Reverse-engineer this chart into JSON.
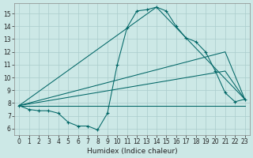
{
  "xlabel": "Humidex (Indice chaleur)",
  "xlim": [
    -0.5,
    23.5
  ],
  "ylim": [
    5.5,
    15.8
  ],
  "yticks": [
    6,
    7,
    8,
    9,
    10,
    11,
    12,
    13,
    14,
    15
  ],
  "xticks": [
    0,
    1,
    2,
    3,
    4,
    5,
    6,
    7,
    8,
    9,
    10,
    11,
    12,
    13,
    14,
    15,
    16,
    17,
    18,
    19,
    20,
    21,
    22,
    23
  ],
  "bg_color": "#cce8e6",
  "grid_color": "#aacccc",
  "line_color": "#006666",
  "main_x": [
    0,
    1,
    2,
    3,
    4,
    5,
    6,
    7,
    8,
    9,
    10,
    11,
    12,
    13,
    14,
    15,
    16,
    17,
    18,
    19,
    20,
    21,
    22,
    23
  ],
  "main_y": [
    7.8,
    7.5,
    7.4,
    7.4,
    7.2,
    6.5,
    6.2,
    6.2,
    5.9,
    7.2,
    11.0,
    13.9,
    15.2,
    15.3,
    15.5,
    15.2,
    14.0,
    13.1,
    12.8,
    12.0,
    10.5,
    8.8,
    8.1,
    8.3
  ],
  "straight_lines": [
    {
      "x": [
        0,
        23
      ],
      "y": [
        7.8,
        7.8
      ]
    },
    {
      "x": [
        0,
        21,
        23
      ],
      "y": [
        7.8,
        12.0,
        8.3
      ]
    },
    {
      "x": [
        0,
        21,
        23
      ],
      "y": [
        7.8,
        10.5,
        8.3
      ]
    },
    {
      "x": [
        0,
        14,
        23
      ],
      "y": [
        7.8,
        15.5,
        8.3
      ]
    }
  ]
}
